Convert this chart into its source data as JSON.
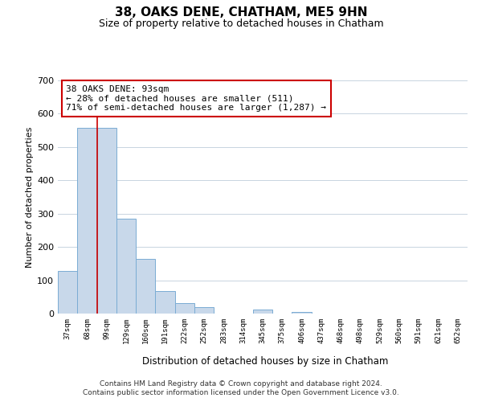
{
  "title": "38, OAKS DENE, CHATHAM, ME5 9HN",
  "subtitle": "Size of property relative to detached houses in Chatham",
  "xlabel": "Distribution of detached houses by size in Chatham",
  "ylabel": "Number of detached properties",
  "bar_labels": [
    "37sqm",
    "68sqm",
    "99sqm",
    "129sqm",
    "160sqm",
    "191sqm",
    "222sqm",
    "252sqm",
    "283sqm",
    "314sqm",
    "345sqm",
    "375sqm",
    "406sqm",
    "437sqm",
    "468sqm",
    "498sqm",
    "529sqm",
    "560sqm",
    "591sqm",
    "621sqm",
    "652sqm"
  ],
  "bar_values": [
    128,
    557,
    557,
    285,
    163,
    68,
    32,
    19,
    0,
    0,
    11,
    0,
    5,
    0,
    0,
    0,
    0,
    0,
    0,
    0,
    0
  ],
  "bar_color": "#c8d8ea",
  "bar_edge_color": "#7aacd4",
  "highlight_line_color": "#cc0000",
  "annotation_line1": "38 OAKS DENE: 93sqm",
  "annotation_line2": "← 28% of detached houses are smaller (511)",
  "annotation_line3": "71% of semi-detached houses are larger (1,287) →",
  "annotation_box_color": "#ffffff",
  "annotation_box_edge": "#cc0000",
  "ylim": [
    0,
    700
  ],
  "yticks": [
    0,
    100,
    200,
    300,
    400,
    500,
    600,
    700
  ],
  "footer_line1": "Contains HM Land Registry data © Crown copyright and database right 2024.",
  "footer_line2": "Contains public sector information licensed under the Open Government Licence v3.0.",
  "background_color": "#ffffff",
  "grid_color": "#c8d4e0"
}
